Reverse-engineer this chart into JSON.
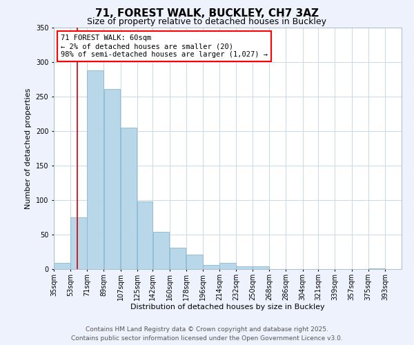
{
  "title": "71, FOREST WALK, BUCKLEY, CH7 3AZ",
  "subtitle": "Size of property relative to detached houses in Buckley",
  "xlabel": "Distribution of detached houses by size in Buckley",
  "ylabel": "Number of detached properties",
  "bar_left_edges": [
    35,
    53,
    71,
    89,
    107,
    125,
    142,
    160,
    178,
    196,
    214,
    232,
    250,
    268,
    286,
    304,
    321,
    339,
    357,
    375
  ],
  "bar_widths": [
    18,
    18,
    18,
    18,
    18,
    17,
    18,
    18,
    18,
    18,
    18,
    18,
    18,
    18,
    18,
    17,
    18,
    18,
    18,
    18
  ],
  "bar_heights": [
    9,
    75,
    288,
    261,
    205,
    98,
    54,
    31,
    21,
    6,
    9,
    4,
    4,
    0,
    0,
    0,
    0,
    0,
    0,
    1
  ],
  "bar_color": "#b8d8ea",
  "bar_edgecolor": "#8ab8d0",
  "ylim": [
    0,
    350
  ],
  "yticks": [
    0,
    50,
    100,
    150,
    200,
    250,
    300,
    350
  ],
  "xtick_labels": [
    "35sqm",
    "53sqm",
    "71sqm",
    "89sqm",
    "107sqm",
    "125sqm",
    "142sqm",
    "160sqm",
    "178sqm",
    "196sqm",
    "214sqm",
    "232sqm",
    "250sqm",
    "268sqm",
    "286sqm",
    "304sqm",
    "321sqm",
    "339sqm",
    "357sqm",
    "375sqm",
    "393sqm"
  ],
  "vline_x": 60,
  "vline_color": "#cc0000",
  "annotation_text": "71 FOREST WALK: 60sqm\n← 2% of detached houses are smaller (20)\n98% of semi-detached houses are larger (1,027) →",
  "footer_line1": "Contains HM Land Registry data © Crown copyright and database right 2025.",
  "footer_line2": "Contains public sector information licensed under the Open Government Licence v3.0.",
  "bg_color": "#eef2fc",
  "plot_bg_color": "#ffffff",
  "grid_color": "#c8d8e8",
  "title_fontsize": 11,
  "subtitle_fontsize": 9,
  "label_fontsize": 8,
  "tick_fontsize": 7,
  "footer_fontsize": 6.5,
  "annotation_fontsize": 7.5
}
